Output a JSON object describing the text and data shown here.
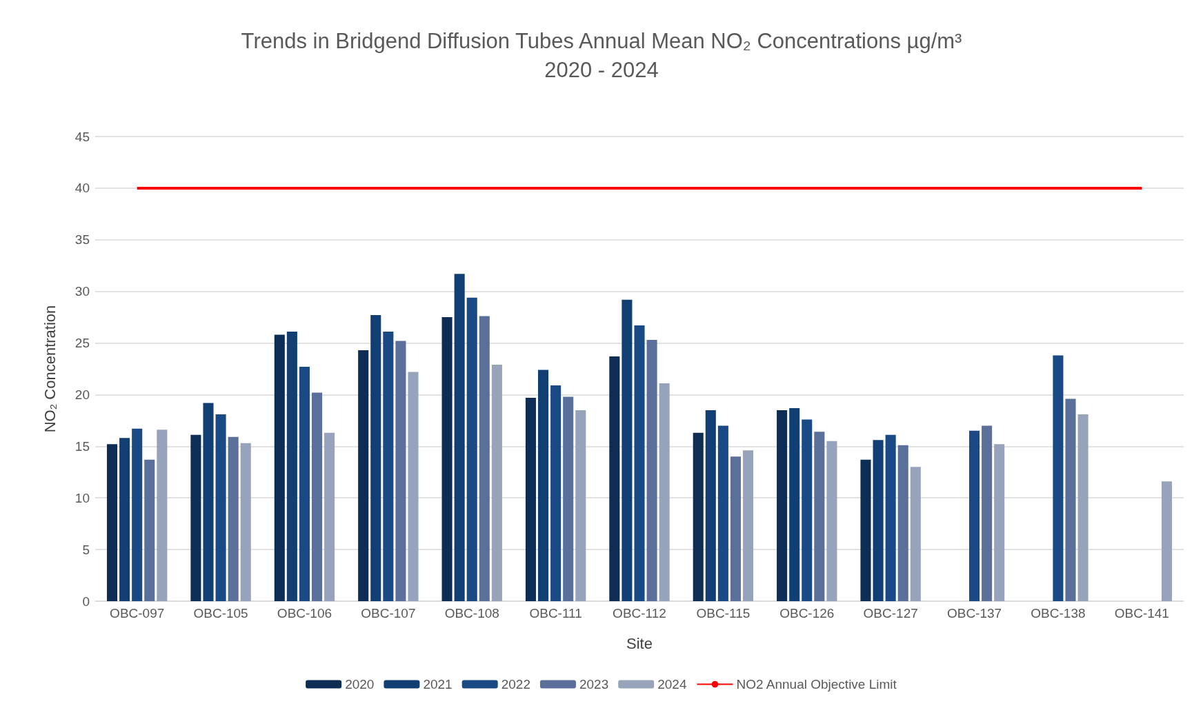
{
  "chart_data": {
    "type": "bar",
    "title": "Trends in Bridgend Diffusion Tubes Annual Mean NO₂ Concentrations µg/m³\n2020 - 2024",
    "xlabel": "Site",
    "ylabel": "NO₂ Concentration",
    "categories": [
      "OBC-097",
      "OBC-105",
      "OBC-106",
      "OBC-107",
      "OBC-108",
      "OBC-111",
      "OBC-112",
      "OBC-115",
      "OBC-126",
      "OBC-127",
      "OBC-137",
      "OBC-138",
      "OBC-141"
    ],
    "series": [
      {
        "name": "2020",
        "color": "#0e2d55",
        "values": [
          15.2,
          16.1,
          25.8,
          24.3,
          27.5,
          19.7,
          23.7,
          16.3,
          18.5,
          13.7,
          null,
          null,
          null
        ]
      },
      {
        "name": "2021",
        "color": "#123f73",
        "values": [
          15.8,
          19.2,
          26.1,
          27.7,
          31.7,
          22.4,
          29.2,
          18.5,
          18.7,
          15.6,
          null,
          null,
          null
        ]
      },
      {
        "name": "2022",
        "color": "#1a4a85",
        "values": [
          16.7,
          18.1,
          22.7,
          26.1,
          29.4,
          20.9,
          26.7,
          17.0,
          17.6,
          16.1,
          16.5,
          23.8,
          null
        ]
      },
      {
        "name": "2023",
        "color": "#5a6f9a",
        "values": [
          13.7,
          15.9,
          20.2,
          25.2,
          27.6,
          19.8,
          25.3,
          14.0,
          16.4,
          15.1,
          17.0,
          19.6,
          null
        ]
      },
      {
        "name": "2024",
        "color": "#97a3bb",
        "values": [
          16.6,
          15.3,
          16.3,
          22.2,
          22.9,
          18.5,
          21.1,
          14.6,
          15.5,
          13.0,
          15.2,
          18.1,
          11.6
        ]
      }
    ],
    "ref_lines": [
      {
        "axis": "y",
        "value": 40,
        "label": "NO2 Annual Objective Limit",
        "color": "#ff0000"
      }
    ],
    "ylim": [
      0,
      45
    ],
    "yticks": [
      0,
      5,
      10,
      15,
      20,
      25,
      30,
      35,
      40,
      45
    ],
    "grid": "y",
    "legend": "bottom"
  }
}
